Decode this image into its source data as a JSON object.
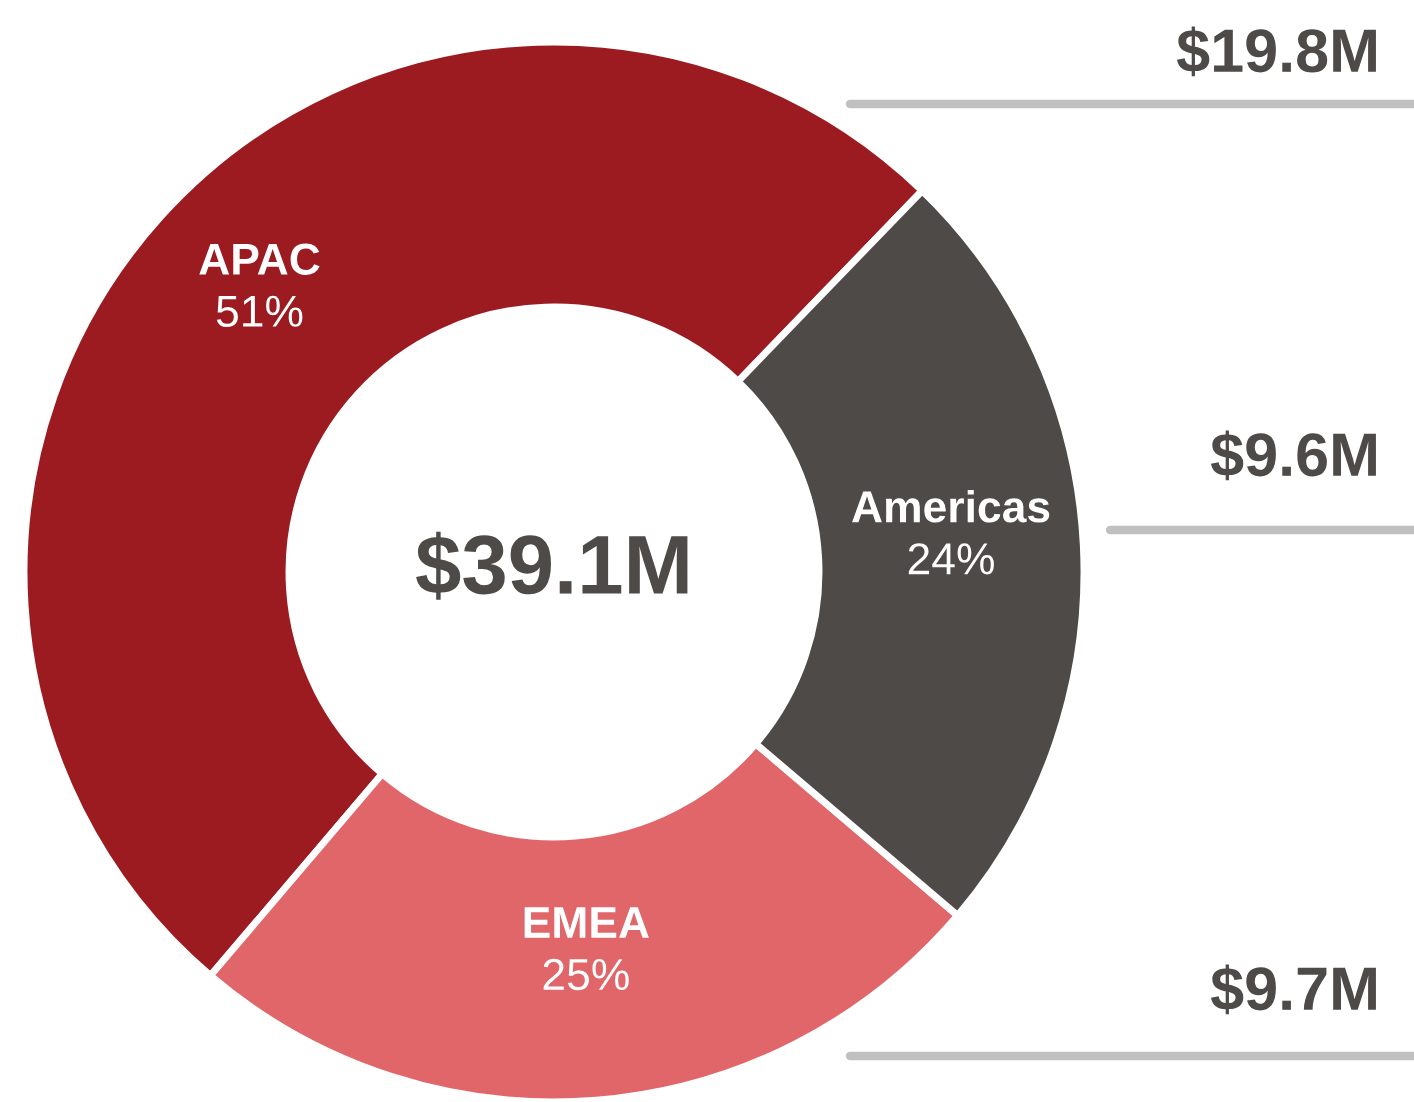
{
  "chart_data": {
    "type": "donut",
    "categories": [
      "APAC",
      "EMEA",
      "Americas"
    ],
    "values": [
      51,
      25,
      24
    ],
    "colors": [
      "#9b1b20",
      "#e1666a",
      "#4d4a48"
    ],
    "value_labels": [
      "51%",
      "25%",
      "24%"
    ],
    "annotations": [
      "$39.1M",
      "$19.8M",
      "$9.7M",
      "$9.6M"
    ],
    "legend": false
  }
}
